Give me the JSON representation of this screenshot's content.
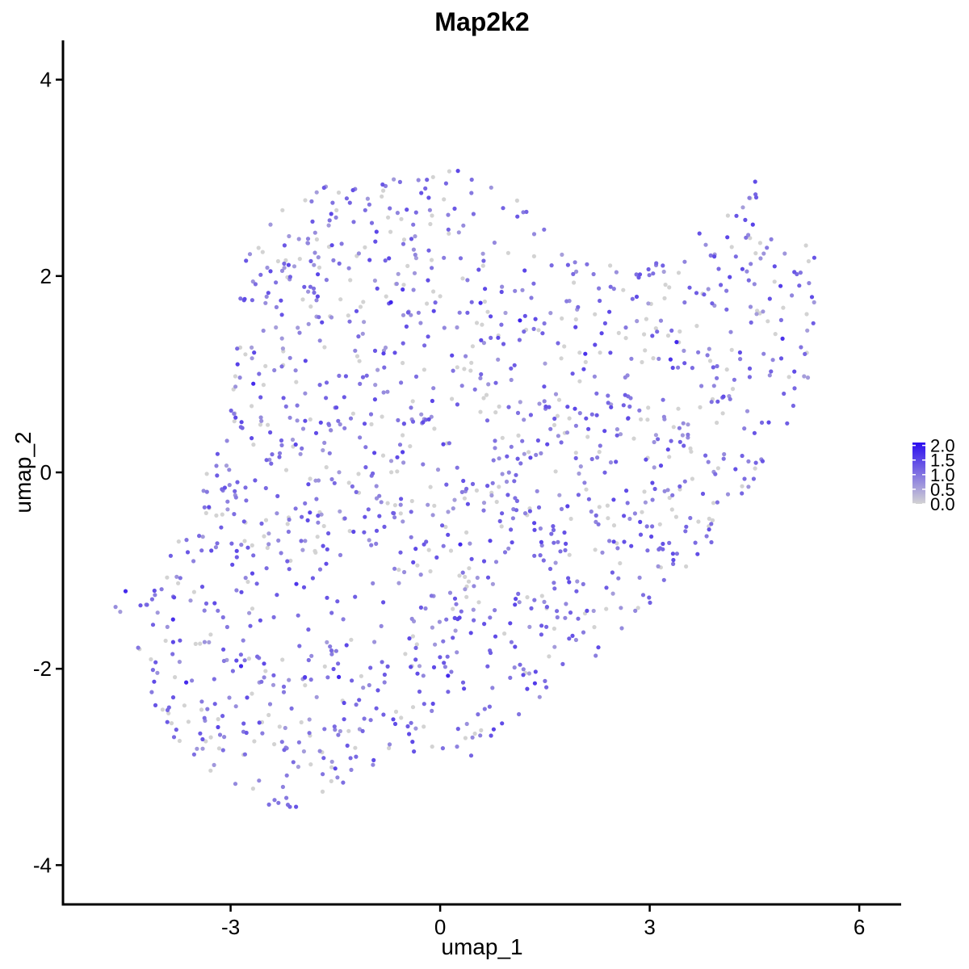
{
  "chart_data": {
    "type": "scatter",
    "title": "Map2k2",
    "xlabel": "umap_1",
    "ylabel": "umap_2",
    "xlim": [
      -5.4,
      6.6
    ],
    "ylim": [
      -4.4,
      4.4
    ],
    "x_ticks": [
      -3,
      0,
      3,
      6
    ],
    "y_ticks": [
      -4,
      -2,
      0,
      2,
      4
    ],
    "x_tick_labels": [
      "-3",
      "0",
      "3",
      "6"
    ],
    "y_tick_labels": [
      "-4",
      "-2",
      "0",
      "2",
      "4"
    ],
    "grid": false,
    "legend": {
      "placement": "right",
      "type": "colorbar",
      "min": 0.0,
      "max": 2.1,
      "breaks": [
        0.0,
        0.5,
        1.0,
        1.5,
        2.0
      ],
      "labels": [
        "0.0",
        "0.5",
        "1.0",
        "1.5",
        "2.0"
      ],
      "low_color": "#d3d3d3",
      "high_color": "#2b0df0"
    },
    "point_cloud": {
      "n_points": 1500,
      "description_region": "cells in UMAP embedding colored by expression",
      "polygon": [
        [
          -4.7,
          -1.3
        ],
        [
          -4.3,
          -1.1
        ],
        [
          -3.6,
          -0.6
        ],
        [
          -3.3,
          0.2
        ],
        [
          -3.0,
          0.9
        ],
        [
          -2.9,
          2.1
        ],
        [
          -2.2,
          2.8
        ],
        [
          -1.5,
          3.0
        ],
        [
          -0.5,
          3.0
        ],
        [
          0.3,
          3.1
        ],
        [
          1.2,
          2.8
        ],
        [
          1.9,
          2.3
        ],
        [
          2.7,
          2.1
        ],
        [
          3.3,
          2.3
        ],
        [
          3.9,
          2.6
        ],
        [
          4.5,
          3.0
        ],
        [
          5.0,
          2.6
        ],
        [
          5.4,
          2.2
        ],
        [
          5.3,
          1.0
        ],
        [
          5.0,
          0.4
        ],
        [
          4.5,
          -0.3
        ],
        [
          3.8,
          -0.8
        ],
        [
          3.3,
          -1.1
        ],
        [
          2.6,
          -1.7
        ],
        [
          1.8,
          -2.1
        ],
        [
          1.0,
          -2.6
        ],
        [
          0.4,
          -3.0
        ],
        [
          -0.6,
          -2.8
        ],
        [
          -1.4,
          -3.2
        ],
        [
          -2.2,
          -3.5
        ],
        [
          -3.0,
          -3.2
        ],
        [
          -3.8,
          -2.8
        ],
        [
          -4.2,
          -2.2
        ],
        [
          -4.5,
          -1.6
        ]
      ],
      "seed": 20240517,
      "expression_fraction_zero": 0.22
    }
  }
}
